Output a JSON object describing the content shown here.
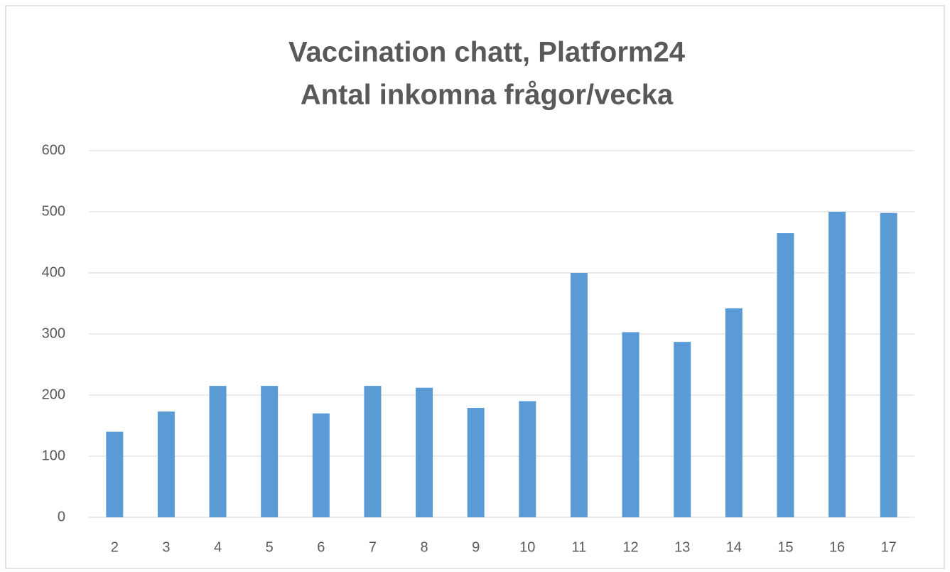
{
  "chart_data": {
    "type": "bar",
    "title": [
      "Vaccination chatt, Platform24",
      "Antal inkomna frågor/vecka"
    ],
    "categories": [
      "2",
      "3",
      "4",
      "5",
      "6",
      "7",
      "8",
      "9",
      "10",
      "11",
      "12",
      "13",
      "14",
      "15",
      "16",
      "17"
    ],
    "values": [
      140,
      173,
      215,
      215,
      170,
      215,
      212,
      179,
      190,
      400,
      303,
      287,
      342,
      465,
      500,
      498
    ],
    "color": "#5b9bd5",
    "ylim": [
      0,
      600
    ],
    "yticks": [
      0,
      100,
      200,
      300,
      400,
      500,
      600
    ],
    "grid": true
  }
}
